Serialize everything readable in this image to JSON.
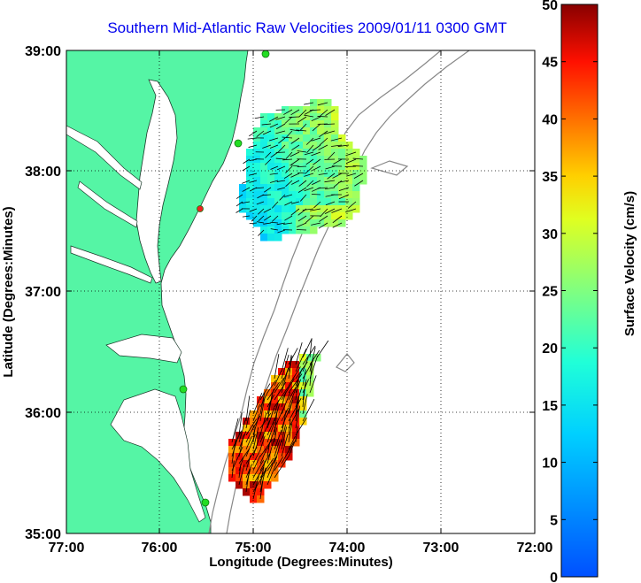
{
  "title": "Southern Mid-Atlantic Raw Velocities 2009/01/11 0300 GMT",
  "xlabel": "Longitude (Degrees:Minutes)",
  "ylabel": "Latitude (Degrees:Minutes)",
  "x_ticks": [
    "77:00",
    "76:00",
    "75:00",
    "74:00",
    "73:00",
    "72:00"
  ],
  "y_ticks": [
    "39:00",
    "38:00",
    "37:00",
    "36:00",
    "35:00"
  ],
  "colorbar": {
    "label": "Surface Velocity (cm/s)",
    "ticks": [
      "0",
      "5",
      "10",
      "15",
      "20",
      "25",
      "30",
      "35",
      "40",
      "45",
      "50"
    ],
    "range": [
      0,
      50
    ],
    "colormap": "jet"
  },
  "map": {
    "lon_range": [
      -77,
      -72
    ],
    "lat_range": [
      35,
      39
    ],
    "land_color": "#55f5a5",
    "isobath_color": "#888888",
    "station_color": "#22dd22",
    "station_highlight_color": "#ee2222"
  }
}
